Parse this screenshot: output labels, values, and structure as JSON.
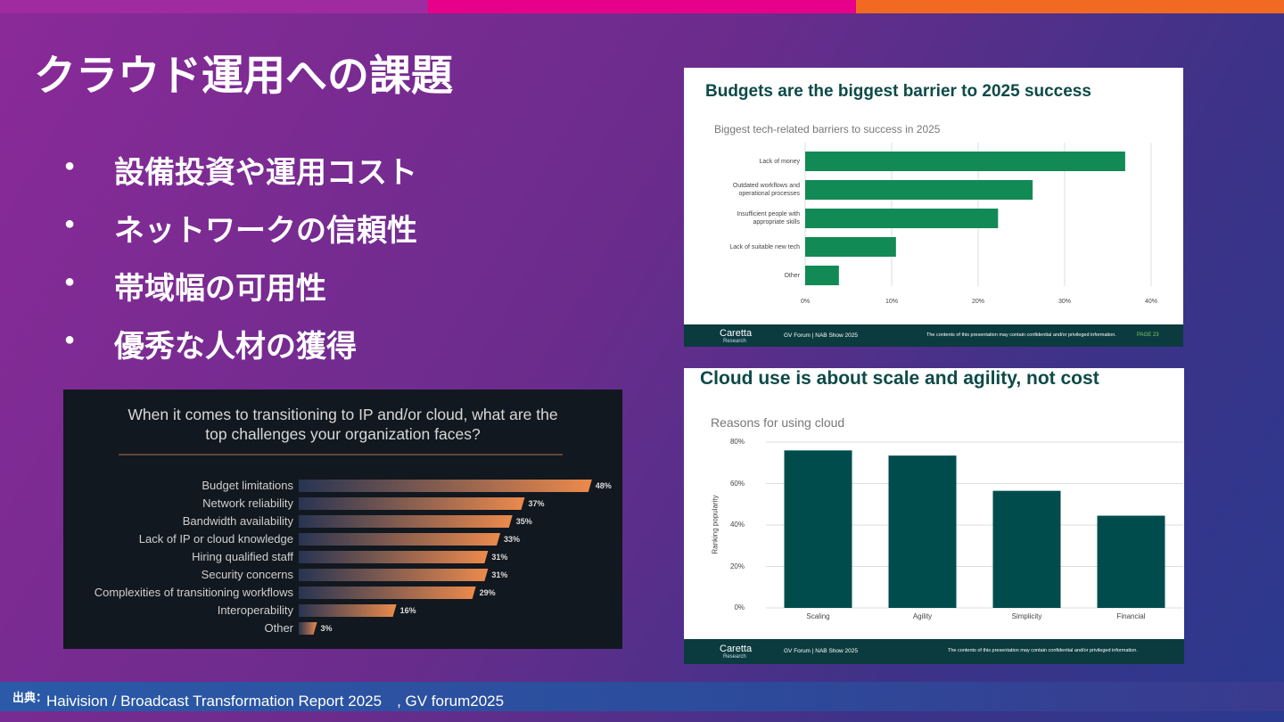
{
  "slide": {
    "title": "クラウド運用への課題",
    "bullets": [
      "設備投資や運用コスト",
      "ネットワークの信頼性",
      "帯域幅の可用性",
      "優秀な人材の獲得"
    ],
    "source_label": "出典：",
    "source_text": "Haivision / Broadcast Transformation Report 2025　, GV forum2025"
  },
  "footers": [
    {
      "brand": "Caretta",
      "brand_sub": "Research",
      "event": "GV Forum | NAB Show 2025",
      "disclaimer": "The contents of this presentation may contain confidential and/or privileged information.",
      "page": "PAGE 23"
    },
    {
      "brand": "Caretta",
      "brand_sub": "Research",
      "event": "GV Forum | NAB Show 2025",
      "disclaimer": "The contents of this presentation may contain confidential and/or privileged information."
    }
  ],
  "chart_data": [
    {
      "type": "bar",
      "orientation": "horizontal",
      "title": "When it comes to transitioning to IP and/or cloud, what are the top challenges your organization faces?",
      "categories": [
        "Budget limitations",
        "Network reliability",
        "Bandwidth availability",
        "Lack of IP or cloud knowledge",
        "Hiring qualified staff",
        "Security concerns",
        "Complexities of transitioning workflows",
        "Interoperability",
        "Other"
      ],
      "values": [
        48,
        37,
        35,
        33,
        31,
        31,
        29,
        16,
        3
      ],
      "value_labels": [
        "48%",
        "37%",
        "35%",
        "33%",
        "31%",
        "31%",
        "29%",
        "16%",
        "3%"
      ],
      "color": "#ec8a4c",
      "gradient_start": "#283452"
    },
    {
      "type": "bar",
      "orientation": "horizontal",
      "title": "Budgets are the biggest barrier to 2025 success",
      "subtitle": "Biggest tech-related barriers to success in 2025",
      "categories": [
        "Lack of money",
        "Outdated workflows and operational processes",
        "Insufficient people with appropriate skills",
        "Lack of suitable new tech",
        "Other"
      ],
      "values": [
        37,
        26.3,
        22.3,
        10.5,
        3.9
      ],
      "color": "#128a55",
      "xlim": [
        0,
        40
      ],
      "xticks": [
        {
          "value": 0,
          "label": "0%"
        },
        {
          "value": 10,
          "label": "10%"
        },
        {
          "value": 20,
          "label": "20%"
        },
        {
          "value": 30,
          "label": "30%"
        },
        {
          "value": 40,
          "label": "40%"
        }
      ],
      "grid": true
    },
    {
      "type": "bar",
      "orientation": "vertical",
      "title": "Cloud use is about scale and agility, not cost",
      "subtitle": "Reasons for using cloud",
      "ylabel": "Ranking popularity",
      "categories": [
        "Scaling",
        "Agility",
        "Simplicity",
        "Financial"
      ],
      "values": [
        76,
        73.5,
        56.5,
        44.5
      ],
      "color": "#004c4c",
      "ylim": [
        0,
        80
      ],
      "yticks": [
        {
          "value": 0,
          "label": "0%"
        },
        {
          "value": 20,
          "label": "20%"
        },
        {
          "value": 40,
          "label": "40%"
        },
        {
          "value": 60,
          "label": "60%"
        },
        {
          "value": 80,
          "label": "80%"
        }
      ],
      "grid": true
    }
  ]
}
